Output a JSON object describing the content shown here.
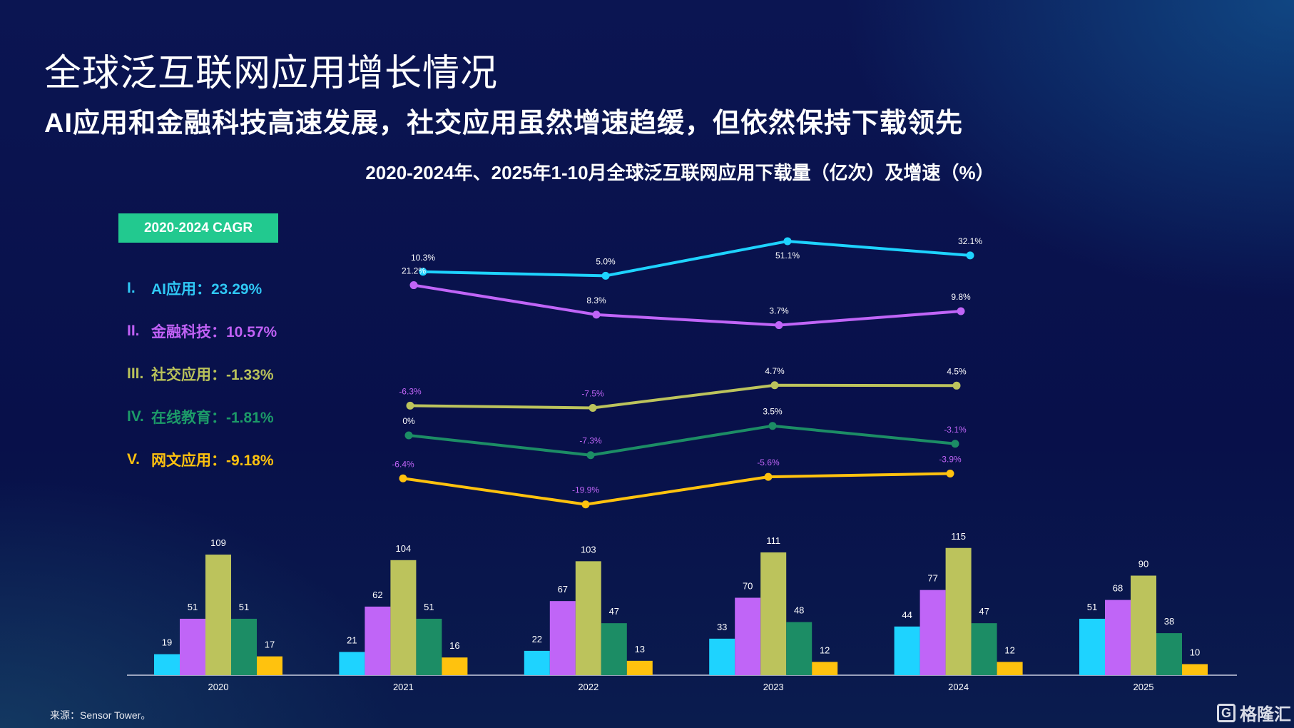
{
  "header": {
    "title": "全球泛互联网应用增长情况",
    "subtitle": "AI应用和金融科技高速发展，社交应用虽然增速趋缓，但依然保持下载领先"
  },
  "cagr": {
    "box_label": "2020-2024 CAGR",
    "items": [
      {
        "num": "I.",
        "text": "AI应用：23.29%",
        "color": "#2fc8f5"
      },
      {
        "num": "II.",
        "text": "金融科技：10.57%",
        "color": "#c061f5"
      },
      {
        "num": "III.",
        "text": "社交应用：-1.33%",
        "color": "#b9c25a"
      },
      {
        "num": "IV.",
        "text": "在线教育：-1.81%",
        "color": "#1c9a68"
      },
      {
        "num": "V.",
        "text": "网文应用：-9.18%",
        "color": "#ffc20e"
      }
    ]
  },
  "footer": {
    "source": "来源：Sensor Tower。",
    "logo_text": "格隆汇"
  },
  "chart_data": {
    "type": "bar+line",
    "title": "2020-2024年、2025年1-10月全球泛互联网应用下载量（亿次）及增速（%）",
    "categories": [
      "2020",
      "2021",
      "2022",
      "2023",
      "2024",
      "2025"
    ],
    "bar_series": [
      {
        "name": "AI应用",
        "color": "#1ed3ff",
        "values": [
          19,
          21,
          22,
          33,
          44,
          51
        ]
      },
      {
        "name": "金融科技",
        "color": "#c065f7",
        "values": [
          51,
          62,
          67,
          70,
          77,
          68
        ]
      },
      {
        "name": "社交应用",
        "color": "#bcc35c",
        "values": [
          109,
          104,
          103,
          111,
          115,
          90
        ]
      },
      {
        "name": "在线教育",
        "color": "#1c8d65",
        "values": [
          51,
          51,
          47,
          48,
          47,
          38
        ]
      },
      {
        "name": "网文应用",
        "color": "#ffc20e",
        "values": [
          17,
          16,
          13,
          12,
          12,
          10
        ]
      }
    ],
    "growth_series": [
      {
        "name": "AI应用",
        "color": "#1ed3ff",
        "label_color": "#ffffff",
        "x": [
          "2021",
          "2022",
          "2023",
          "2024"
        ],
        "values": [
          10.3,
          5.0,
          51.1,
          32.1
        ],
        "labels": [
          "10.3%",
          "5.0%",
          "51.1%",
          "32.1%"
        ]
      },
      {
        "name": "金融科技",
        "color": "#c065f7",
        "label_color": "#ffffff",
        "x": [
          "2021",
          "2022",
          "2023",
          "2024"
        ],
        "values": [
          21.2,
          8.3,
          3.7,
          9.8
        ],
        "labels": [
          "21.2%",
          "8.3%",
          "3.7%",
          "9.8%"
        ]
      },
      {
        "name": "社交应用",
        "color": "#bcc35c",
        "label_color": "#c065f7",
        "x": [
          "2021",
          "2022",
          "2023",
          "2024"
        ],
        "values": [
          -6.3,
          -7.5,
          4.7,
          4.5
        ],
        "labels": [
          "-6.3%",
          "-7.5%",
          "4.7%",
          "4.5%"
        ],
        "label_colors": [
          "#c065f7",
          "#c065f7",
          "#ffffff",
          "#ffffff"
        ]
      },
      {
        "name": "在线教育",
        "color": "#1c8d65",
        "label_color": "#ffffff",
        "x": [
          "2021",
          "2022",
          "2023",
          "2024"
        ],
        "values": [
          0,
          -7.3,
          3.5,
          -3.1
        ],
        "labels": [
          "0%",
          "-7.3%",
          "3.5%",
          "-3.1%"
        ],
        "label_colors": [
          "#ffffff",
          "#c065f7",
          "#ffffff",
          "#c065f7"
        ]
      },
      {
        "name": "网文应用",
        "color": "#ffc20e",
        "label_color": "#c065f7",
        "x": [
          "2021",
          "2022",
          "2023",
          "2024"
        ],
        "values": [
          -6.4,
          -19.9,
          -5.6,
          -3.9
        ],
        "labels": [
          "-6.4%",
          "-19.9%",
          "-5.6%",
          "-3.9%"
        ]
      }
    ],
    "ylabel": "",
    "xlabel": "",
    "grid": false,
    "legend": "left"
  }
}
